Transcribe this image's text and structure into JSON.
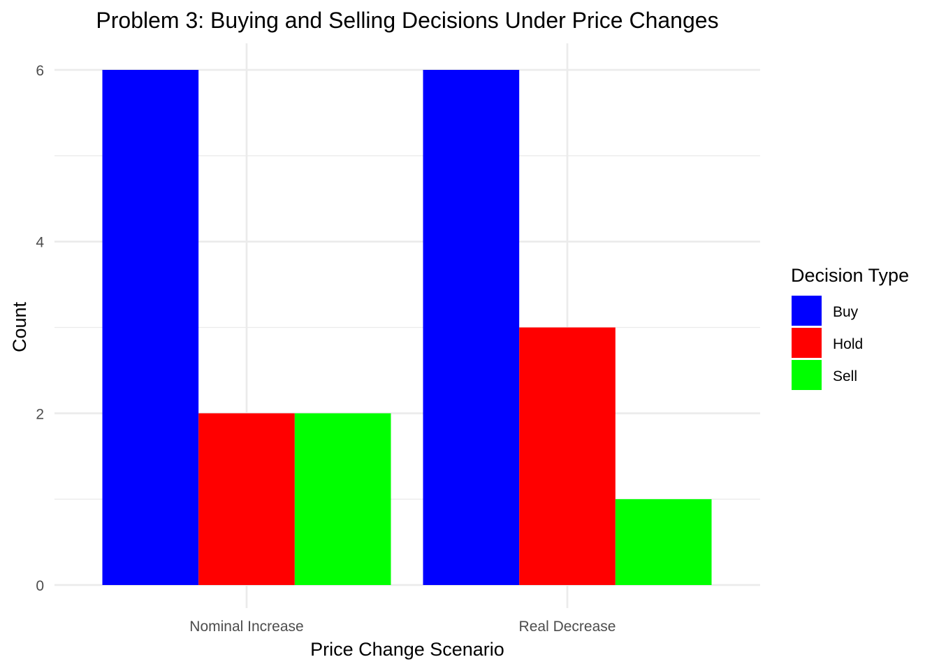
{
  "chart_data": {
    "type": "bar",
    "title": "Problem 3: Buying and Selling Decisions Under Price Changes",
    "xlabel": "Price Change Scenario",
    "ylabel": "Count",
    "categories": [
      "Nominal Increase",
      "Real Decrease"
    ],
    "series": [
      {
        "name": "Buy",
        "color": "#0000ff",
        "values": [
          6,
          6
        ]
      },
      {
        "name": "Hold",
        "color": "#ff0000",
        "values": [
          2,
          3
        ]
      },
      {
        "name": "Sell",
        "color": "#00ff00",
        "values": [
          2,
          1
        ]
      }
    ],
    "ylim": [
      0,
      6
    ],
    "yticks": [
      0,
      2,
      4,
      6
    ],
    "grid": true,
    "legend": {
      "title": "Decision Type",
      "position": "right"
    }
  }
}
